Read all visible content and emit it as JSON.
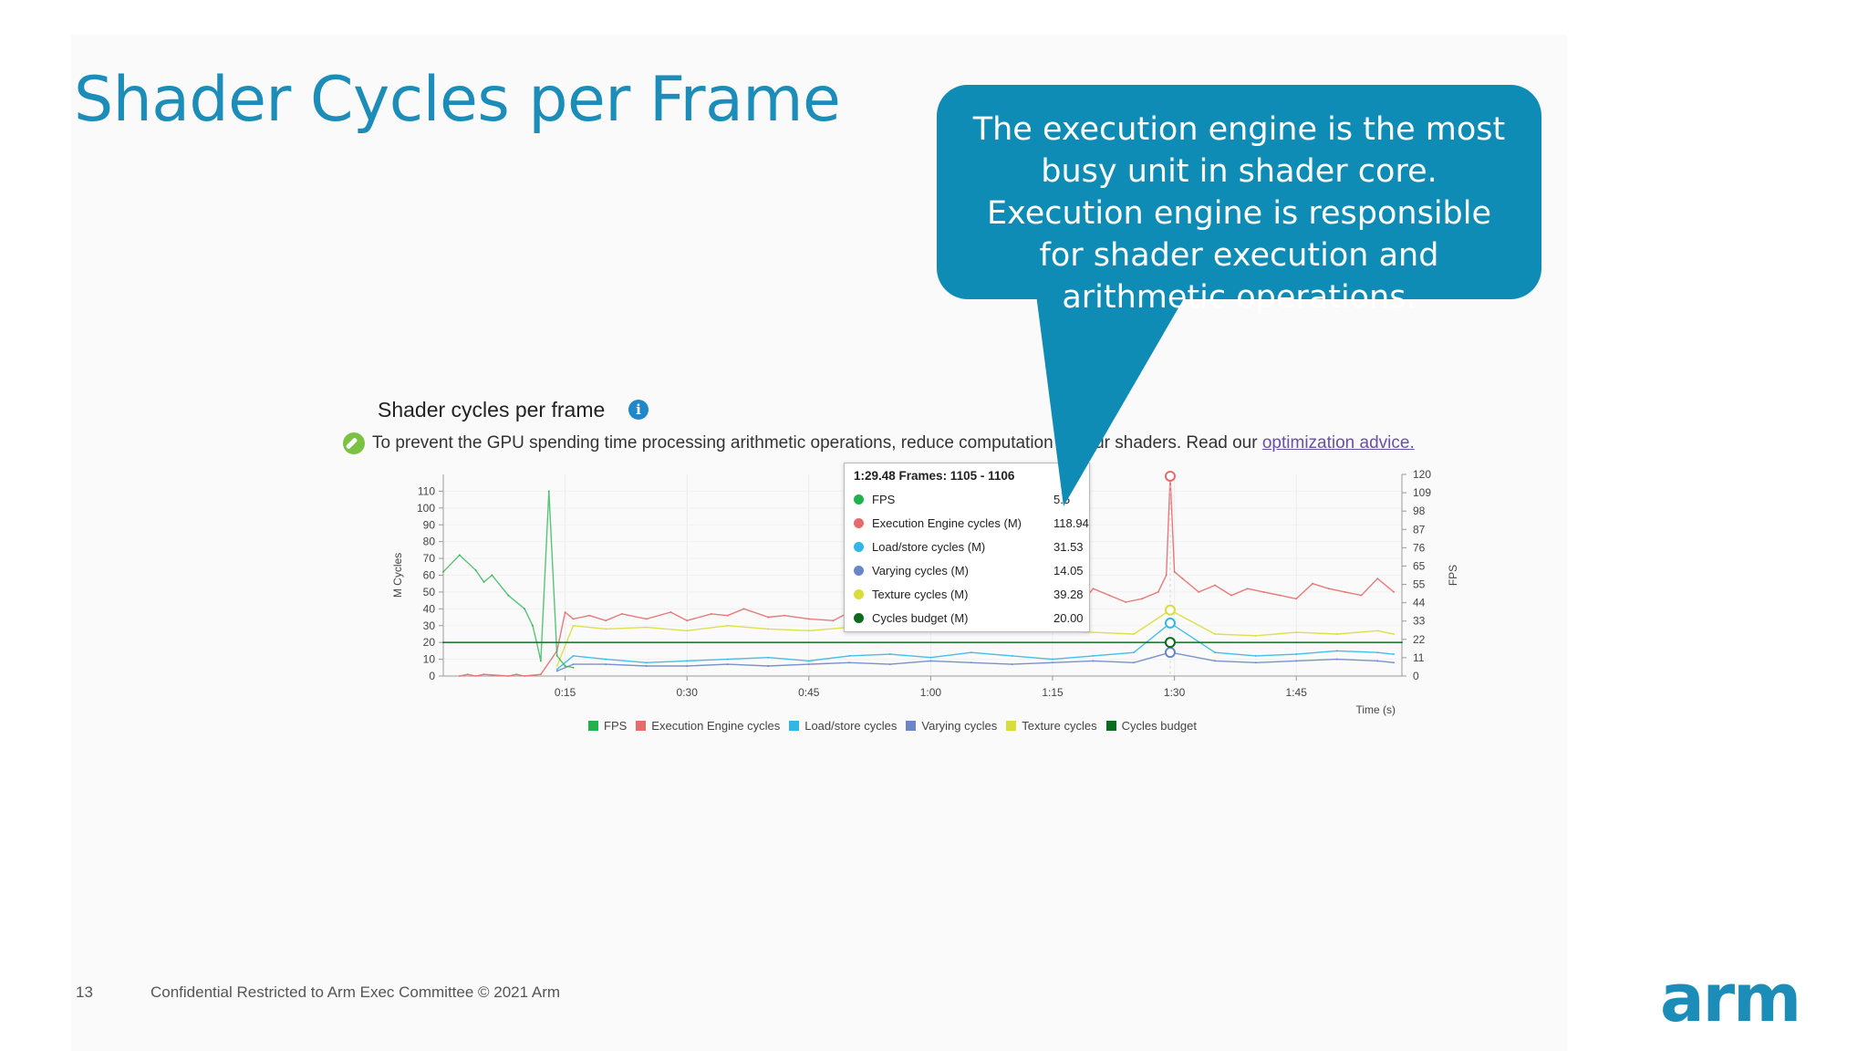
{
  "slide": {
    "title": "Shader Cycles per Frame",
    "callout": "The execution engine is the most busy unit in shader core. Execution engine is responsible for shader execution and arithmetic operations.",
    "page_number": "13",
    "footer": "Confidential Restricted to Arm Exec Committee © 2021 Arm",
    "logo_text": "arm",
    "brand_color": "#1c8cb8"
  },
  "chart_heading": "Shader cycles per frame",
  "advice": {
    "text": "To prevent the GPU spending time processing arithmetic operations, reduce computation in your shaders. Read our ",
    "link": "optimization advice."
  },
  "tooltip": {
    "header": "1:29.48 Frames: 1105 - 1106",
    "rows": [
      {
        "label": "FPS",
        "value": "5.5",
        "color": "#22b14c"
      },
      {
        "label": "Execution Engine cycles (M)",
        "value": "118.94",
        "color": "#e86b6b"
      },
      {
        "label": "Load/store cycles (M)",
        "value": "31.53",
        "color": "#31b7e6"
      },
      {
        "label": "Varying cycles (M)",
        "value": "14.05",
        "color": "#6b86c6"
      },
      {
        "label": "Texture cycles (M)",
        "value": "39.28",
        "color": "#d9dd3b"
      },
      {
        "label": "Cycles budget (M)",
        "value": "20.00",
        "color": "#0c6b1f"
      }
    ]
  },
  "chart_data": {
    "type": "line",
    "title": "Shader cycles per frame",
    "xlabel": "Time (s)",
    "ylabel": "M Cycles",
    "y2label": "FPS",
    "xlim": [
      0,
      118
    ],
    "ylim": [
      0,
      120
    ],
    "y2lim": [
      0,
      120
    ],
    "x_ticks": [
      "0:15",
      "0:30",
      "0:45",
      "1:00",
      "1:15",
      "1:30",
      "1:45"
    ],
    "x_tick_values": [
      15,
      30,
      45,
      60,
      75,
      90,
      105
    ],
    "y_ticks": [
      "0",
      "10",
      "20",
      "30",
      "40",
      "50",
      "60",
      "70",
      "80",
      "90",
      "100",
      "110"
    ],
    "y_tick_values": [
      0,
      10,
      20,
      30,
      40,
      50,
      60,
      70,
      80,
      90,
      100,
      110
    ],
    "y2_ticks": [
      "0",
      "11",
      "22",
      "33",
      "44",
      "55",
      "65",
      "76",
      "87",
      "98",
      "109",
      "120"
    ],
    "grid": true,
    "legend": "bottom",
    "cursor_x": 89.48,
    "series": [
      {
        "name": "FPS",
        "color": "#22b14c",
        "x": [
          0,
          2,
          4,
          5,
          6,
          8,
          10,
          11,
          11.5,
          12,
          13,
          14,
          15,
          16
        ],
        "y": [
          62,
          72,
          63,
          56,
          60,
          48,
          40,
          30,
          20,
          9,
          110,
          12,
          6,
          5
        ]
      },
      {
        "name": "Execution Engine cycles",
        "color": "#e86b6b",
        "x": [
          2,
          3,
          4,
          5,
          8,
          9,
          10,
          12,
          14,
          15,
          16,
          18,
          20,
          22,
          25,
          28,
          30,
          33,
          35,
          37,
          40,
          42,
          45,
          48,
          50,
          52,
          55,
          58,
          60,
          62,
          64,
          66,
          68,
          70,
          72,
          74,
          76,
          78,
          80,
          82,
          84,
          86,
          88,
          89,
          89.48,
          90,
          91,
          93,
          95,
          97,
          99,
          101,
          103,
          105,
          107,
          109,
          111,
          113,
          115,
          117
        ],
        "y": [
          0,
          1,
          0,
          1,
          0,
          1,
          0,
          1,
          15,
          38,
          34,
          36,
          33,
          37,
          34,
          38,
          33,
          37,
          36,
          40,
          35,
          36,
          34,
          33,
          38,
          50,
          44,
          42,
          40,
          42,
          40,
          48,
          45,
          42,
          50,
          44,
          48,
          40,
          52,
          48,
          44,
          46,
          50,
          60,
          118.94,
          62,
          58,
          50,
          54,
          48,
          52,
          50,
          48,
          46,
          55,
          52,
          50,
          48,
          58,
          50
        ]
      },
      {
        "name": "Load/store cycles",
        "color": "#31b7e6",
        "x": [
          14,
          16,
          20,
          25,
          30,
          35,
          40,
          45,
          50,
          55,
          60,
          65,
          70,
          75,
          80,
          85,
          89.48,
          95,
          100,
          105,
          110,
          115,
          117
        ],
        "y": [
          4,
          12,
          10,
          8,
          9,
          10,
          11,
          9,
          12,
          13,
          11,
          14,
          12,
          10,
          12,
          14,
          31.53,
          14,
          12,
          13,
          15,
          14,
          13
        ]
      },
      {
        "name": "Varying cycles",
        "color": "#6b86c6",
        "x": [
          14,
          16,
          20,
          25,
          30,
          35,
          40,
          45,
          50,
          55,
          60,
          65,
          70,
          75,
          80,
          85,
          89.48,
          95,
          100,
          105,
          110,
          115,
          117
        ],
        "y": [
          3,
          7,
          7,
          6,
          6,
          7,
          6,
          7,
          8,
          7,
          9,
          8,
          7,
          8,
          9,
          8,
          14.05,
          9,
          8,
          9,
          10,
          9,
          8
        ]
      },
      {
        "name": "Texture cycles",
        "color": "#d9dd3b",
        "x": [
          14,
          16,
          20,
          25,
          30,
          35,
          40,
          45,
          50,
          55,
          60,
          65,
          70,
          75,
          80,
          85,
          89.48,
          95,
          100,
          105,
          110,
          115,
          117
        ],
        "y": [
          6,
          30,
          28,
          29,
          27,
          30,
          28,
          27,
          29,
          30,
          28,
          29,
          28,
          27,
          26,
          25,
          39.28,
          25,
          24,
          26,
          25,
          27,
          25
        ]
      },
      {
        "name": "Cycles budget",
        "color": "#0c6b1f",
        "x": [
          0,
          118
        ],
        "y": [
          20,
          20
        ]
      }
    ]
  }
}
